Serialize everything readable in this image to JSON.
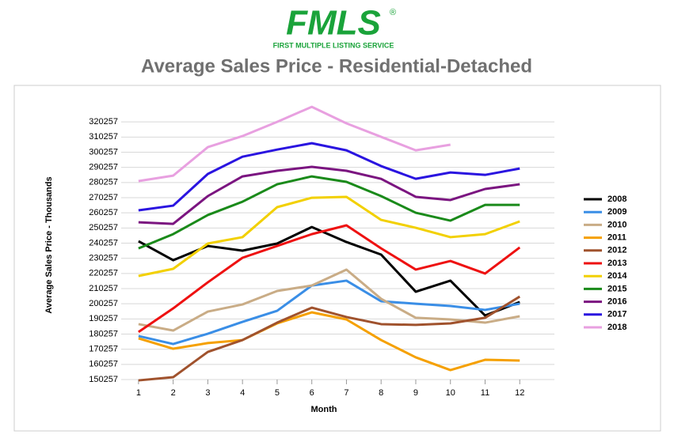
{
  "header": {
    "logo": "FMLS",
    "registered": "®",
    "tagline": "FIRST MULTIPLE LISTING SERVICE"
  },
  "chart_data": {
    "type": "line",
    "title": "Average Sales Price - Residential-Detached",
    "xlabel": "Month",
    "ylabel": "Average Sales Price - Thousands",
    "x": [
      1,
      2,
      3,
      4,
      5,
      6,
      7,
      8,
      9,
      10,
      11,
      12
    ],
    "xlim": [
      0.5,
      13
    ],
    "xticks": [
      1,
      2,
      3,
      4,
      5,
      6,
      7,
      8,
      9,
      10,
      11,
      12
    ],
    "ylim": [
      150257,
      330257
    ],
    "yticks": [
      150257,
      160257,
      170257,
      180257,
      190257,
      200257,
      210257,
      220257,
      230257,
      240257,
      250257,
      260257,
      270257,
      280257,
      290257,
      300257,
      310257,
      320257
    ],
    "grid": true,
    "legend": "right",
    "series": [
      {
        "name": "2008",
        "color": "#000000",
        "values": [
          241500,
          229000,
          238400,
          235300,
          240000,
          250900,
          241000,
          232700,
          208200,
          215500,
          192500,
          201400
        ]
      },
      {
        "name": "2009",
        "color": "#3a8ee6",
        "values": [
          179000,
          173700,
          180500,
          188300,
          195600,
          212300,
          215500,
          201900,
          200300,
          198800,
          196200,
          200300
        ]
      },
      {
        "name": "2010",
        "color": "#c9ac86",
        "values": [
          186800,
          182600,
          195100,
          199800,
          208700,
          212300,
          222800,
          203500,
          191000,
          189900,
          187800,
          192000
        ]
      },
      {
        "name": "2011",
        "color": "#f5a000",
        "values": [
          177400,
          170600,
          174300,
          176300,
          187300,
          194600,
          189900,
          176300,
          164900,
          156500,
          163300,
          162800
        ]
      },
      {
        "name": "2012",
        "color": "#a0522d",
        "values": [
          149700,
          151800,
          168500,
          176300,
          187800,
          197700,
          191500,
          186800,
          186300,
          187300,
          191000,
          205000
        ]
      },
      {
        "name": "2013",
        "color": "#ee1111",
        "values": [
          181600,
          197200,
          214400,
          230600,
          238400,
          246200,
          252000,
          236800,
          222800,
          228500,
          220200,
          237400
        ]
      },
      {
        "name": "2014",
        "color": "#f2d000",
        "values": [
          218600,
          223300,
          240000,
          244200,
          264000,
          270200,
          270800,
          255600,
          250400,
          244200,
          246200,
          254600
        ]
      },
      {
        "name": "2015",
        "color": "#1a8a1a",
        "values": [
          236800,
          246200,
          258800,
          267600,
          279100,
          284300,
          280700,
          271300,
          260300,
          255100,
          265500,
          265500
        ]
      },
      {
        "name": "2016",
        "color": "#7b1580",
        "values": [
          254000,
          253000,
          271300,
          284300,
          288000,
          290600,
          288000,
          282700,
          270800,
          268700,
          276000,
          279100
        ]
      },
      {
        "name": "2017",
        "color": "#2a14e0",
        "values": [
          261900,
          265000,
          285900,
          297300,
          302000,
          306200,
          301500,
          291100,
          282700,
          286900,
          285300,
          289500
        ]
      },
      {
        "name": "2018",
        "color": "#e8a0e0",
        "values": [
          281200,
          284800,
          303600,
          310900,
          320300,
          330200,
          319300,
          310400,
          301500,
          305200,
          null,
          null
        ]
      }
    ]
  }
}
